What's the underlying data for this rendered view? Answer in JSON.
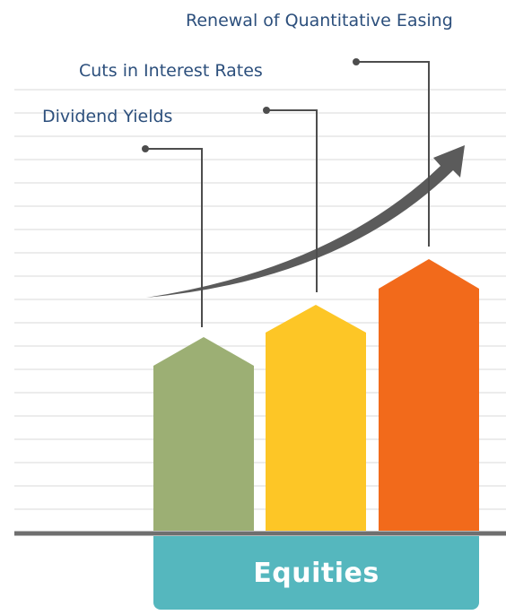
{
  "drivers": [
    {
      "label": "Dividend Yields",
      "color": "#9caf74",
      "level": 1
    },
    {
      "label": "Cuts in Interest Rates",
      "color": "#fdc626",
      "level": 2
    },
    {
      "label": "Renewal of Quantitative Easing",
      "color": "#f26a1b",
      "level": 3
    }
  ],
  "base": {
    "label": "Equities",
    "color": "#55b7be"
  },
  "colors": {
    "text": "#2c4f7c",
    "gridline": "#ececec",
    "baseline": "#6f6f6f",
    "arrow": "#5b5b5b",
    "leader": "#4d4d4d"
  }
}
